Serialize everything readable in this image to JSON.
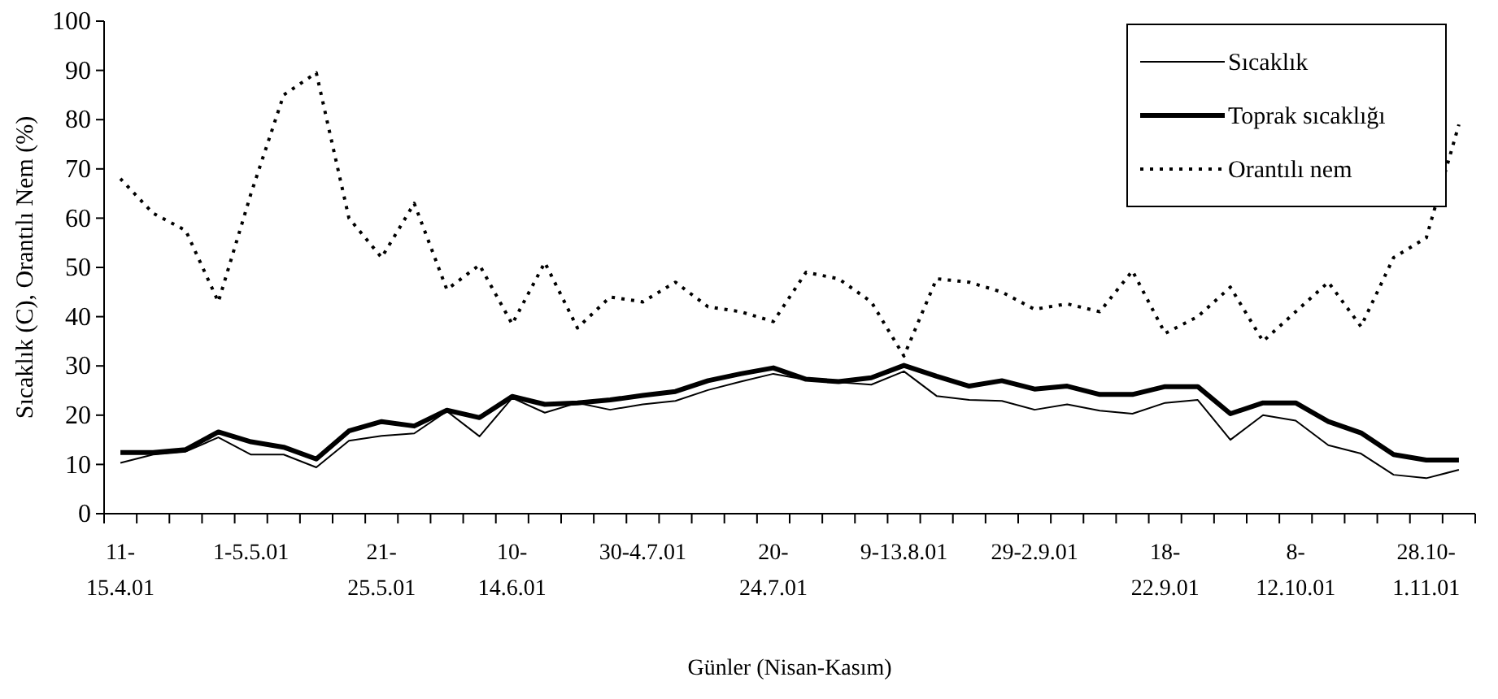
{
  "chart_data": {
    "type": "line",
    "xlabel": "Günler (Nisan-Kasım)",
    "ylabel": "Sıcaklık (C), Orantılı Nem (%)",
    "categories": [
      "11-15.4.01",
      null,
      null,
      null,
      "1-5.5.01",
      null,
      null,
      null,
      "21-25.5.01",
      null,
      null,
      null,
      "10-14.6.01",
      null,
      null,
      null,
      "30-4.7.01",
      null,
      null,
      null,
      "20-24.7.01",
      null,
      null,
      null,
      "9-13.8.01",
      null,
      null,
      null,
      "29-2.9.01",
      null,
      null,
      null,
      "18-22.9.01",
      null,
      null,
      null,
      "8-12.10.01",
      null,
      null,
      null,
      "28.10-1.11.01",
      null
    ],
    "ylim": [
      0,
      100
    ],
    "yticks": [
      0,
      10,
      20,
      30,
      40,
      50,
      60,
      70,
      80,
      90,
      100
    ],
    "legend": "top right",
    "grid": false,
    "series": [
      {
        "name": "Sıcaklık",
        "color": "#000000",
        "line_style": "solid",
        "values": [
          10.3,
          12,
          12.6,
          15.5,
          12,
          12,
          9.4,
          14.8,
          15.8,
          16.3,
          20.8,
          15.7,
          23.5,
          20.5,
          22.5,
          21.1,
          22.2,
          22.9,
          25.1,
          26.8,
          28.4,
          27.2,
          26.7,
          26.2,
          28.9,
          23.9,
          23.1,
          22.9,
          21.1,
          22.2,
          20.9,
          20.3,
          22.5,
          23.1,
          15,
          20,
          18.9,
          13.9,
          12.2,
          7.9,
          7.2,
          8.9
        ]
      },
      {
        "name": "Toprak sıcaklığı",
        "color": "#000000",
        "line_style": "solid",
        "values": [
          12.4,
          12.4,
          13,
          16.6,
          14.6,
          13.5,
          11.1,
          16.8,
          18.7,
          17.8,
          21,
          19.5,
          23.8,
          22.2,
          22.5,
          23.1,
          24,
          24.8,
          27,
          28.4,
          29.6,
          27.3,
          26.8,
          27.6,
          30.1,
          27.9,
          25.9,
          27,
          25.3,
          25.9,
          24.2,
          24.2,
          25.8,
          25.8,
          20.3,
          22.5,
          22.5,
          18.7,
          16.4,
          12,
          10.9,
          10.9
        ]
      },
      {
        "name": "Orantılı nem",
        "color": "#000000",
        "line_style": "dotted",
        "values": [
          68,
          61,
          57.5,
          43,
          65,
          85,
          89.5,
          60,
          52,
          63,
          45.5,
          50.5,
          38.5,
          51,
          37.7,
          44,
          43,
          47,
          42,
          41,
          39,
          49,
          47.7,
          43,
          32,
          47.7,
          47,
          45,
          41.5,
          42.6,
          41,
          49.3,
          36.6,
          40,
          46,
          35,
          41,
          47,
          38,
          52,
          56,
          79
        ]
      }
    ]
  }
}
